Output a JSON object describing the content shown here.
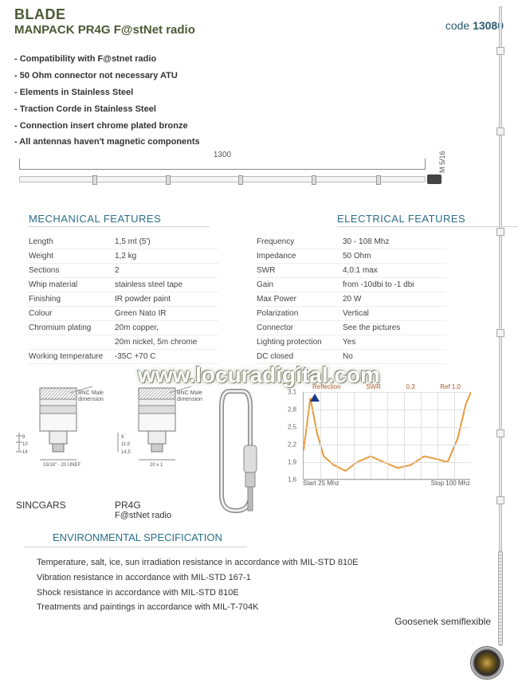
{
  "header": {
    "title1": "BLADE",
    "title2": "MANPACK PR4G  F@stNet radio",
    "code_label": "code",
    "code": "13080"
  },
  "bullets": [
    "- Compatibility with F@stnet radio",
    "- 50 Ohm connector not necessary ATU",
    "- Elements in Stainless Steel",
    "- Traction Corde in Stainless Steel",
    "- Connection insert chrome plated bronze",
    "- All antennas haven't magnetic components"
  ],
  "dimension": {
    "length_mm": "1300",
    "thread": "M 5/16"
  },
  "sections": {
    "mech": "MECHANICAL FEATURES",
    "elec": "ELECTRICAL FEATURES",
    "env": "ENVIRONMENTAL SPECIFICATION"
  },
  "mech_rows": [
    [
      "Length",
      "1,5 mt (5')"
    ],
    [
      "Weight",
      "1,2 kg"
    ],
    [
      "Sections",
      "2"
    ],
    [
      "Whip material",
      "stainless steel tape"
    ],
    [
      "Finishing",
      "IR powder paint"
    ],
    [
      "Colour",
      "Green Nato IR"
    ],
    [
      "Chromium plating",
      "20m copper,"
    ],
    [
      "",
      "20m nickel, 5m chrome"
    ],
    [
      "Working temperature",
      "-35C +70 C"
    ]
  ],
  "elec_rows": [
    [
      "Frequency",
      "30 - 108 Mhz"
    ],
    [
      "Impedance",
      "50 Ohm"
    ],
    [
      "SWR",
      "4,0:1 max"
    ],
    [
      "Gain",
      "from -10dbi to -1 dbi"
    ],
    [
      "Max Power",
      "20 W"
    ],
    [
      "Polarization",
      "Vertical"
    ],
    [
      "Connector",
      "See the pictures"
    ],
    [
      "Lighting protection",
      "Yes"
    ],
    [
      "DC closed",
      "No"
    ]
  ],
  "watermark": "www.locuradigital.com",
  "connectors": {
    "bnc_label": "BNC Male dimensions",
    "sincgars": {
      "name": "SINCGARS",
      "dims": [
        "9",
        "10",
        "14"
      ],
      "thread": "15/16\" - 20 UNEF"
    },
    "pr4g": {
      "name": "PR4G",
      "sub": "F@stNet radio",
      "dims": [
        "9",
        "11,5",
        "14,5"
      ],
      "thread": "20 x 1"
    }
  },
  "chart": {
    "top_labels": [
      "Reflection",
      "SWR",
      "0,3",
      "Ref 1,0"
    ],
    "ylim": [
      1.6,
      3.1
    ],
    "yticks": [
      "3,1",
      "2,8",
      "2,5",
      "2,2",
      "1,9",
      "1,6"
    ],
    "xlabels": [
      "Start 25 Mhz",
      "Stop 100 Mhz"
    ],
    "line_color": "#e69a3b",
    "grid_color": "#e0e0e0",
    "points": [
      [
        0.0,
        2.1
      ],
      [
        0.04,
        3.0
      ],
      [
        0.08,
        2.4
      ],
      [
        0.12,
        2.0
      ],
      [
        0.18,
        1.85
      ],
      [
        0.25,
        1.75
      ],
      [
        0.32,
        1.9
      ],
      [
        0.4,
        2.0
      ],
      [
        0.48,
        1.9
      ],
      [
        0.56,
        1.8
      ],
      [
        0.64,
        1.85
      ],
      [
        0.72,
        2.0
      ],
      [
        0.8,
        1.95
      ],
      [
        0.86,
        1.9
      ],
      [
        0.92,
        2.3
      ],
      [
        0.97,
        2.9
      ],
      [
        1.0,
        3.1
      ]
    ]
  },
  "env_lines": [
    "Temperature, salt, ice, sun irradiation resistance in accordance with MIL-STD 810E",
    "Vibration resistance in accordance with MIL-STD 167-1",
    "Shock resistance in accordance with  MIL-STD 810E",
    "Treatments and paintings in accordance with MIL-T-704K"
  ],
  "goosenek": "Goosenek semiflexible"
}
